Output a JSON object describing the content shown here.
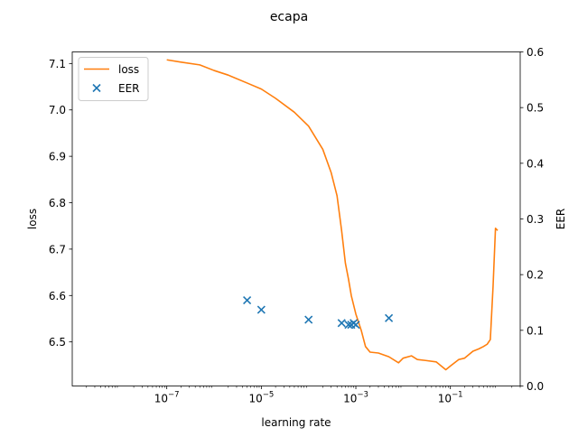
{
  "chart_data": {
    "type": "line",
    "title": "ecapa",
    "xlabel": "learning rate",
    "ylabel_left": "loss",
    "ylabel_right": "EER",
    "x_scale": "log",
    "xlim": [
      1e-09,
      3
    ],
    "ylim_left": [
      6.405,
      7.125
    ],
    "ylim_right": [
      0.0,
      0.6
    ],
    "x_ticks": [
      {
        "value": 1e-07,
        "base": "10",
        "exp": "−7"
      },
      {
        "value": 1e-05,
        "base": "10",
        "exp": "−5"
      },
      {
        "value": 0.001,
        "base": "10",
        "exp": "−3"
      },
      {
        "value": 0.1,
        "base": "10",
        "exp": "−1"
      }
    ],
    "y_ticks_left": [
      "6.5",
      "6.6",
      "6.7",
      "6.8",
      "6.9",
      "7.0",
      "7.1"
    ],
    "y_ticks_right": [
      "0.0",
      "0.1",
      "0.2",
      "0.3",
      "0.4",
      "0.5",
      "0.6"
    ],
    "legend": {
      "placement": "upper-left",
      "entries": [
        {
          "label": "loss",
          "marker": "line",
          "color": "#ff7f0e"
        },
        {
          "label": "EER",
          "marker": "x",
          "color": "#1f77b4"
        }
      ]
    },
    "series": [
      {
        "name": "loss",
        "axis": "left",
        "color": "#ff7f0e",
        "x": [
          1e-07,
          2e-07,
          5e-07,
          1e-06,
          2e-06,
          5e-06,
          1e-05,
          2e-05,
          5e-05,
          0.0001,
          0.0002,
          0.0003,
          0.0004,
          0.0005,
          0.0006,
          0.0007,
          0.0008,
          0.001,
          0.0013,
          0.0016,
          0.002,
          0.003,
          0.005,
          0.008,
          0.01,
          0.015,
          0.02,
          0.03,
          0.05,
          0.08,
          0.1,
          0.15,
          0.2,
          0.3,
          0.4,
          0.5,
          0.6,
          0.7,
          0.8,
          0.9,
          1.0
        ],
        "y": [
          7.108,
          7.103,
          7.097,
          7.085,
          7.075,
          7.058,
          7.045,
          7.025,
          6.995,
          6.965,
          6.915,
          6.865,
          6.815,
          6.74,
          6.67,
          6.635,
          6.6,
          6.56,
          6.525,
          6.49,
          6.478,
          6.476,
          6.468,
          6.455,
          6.465,
          6.47,
          6.462,
          6.46,
          6.457,
          6.44,
          6.448,
          6.462,
          6.465,
          6.48,
          6.485,
          6.49,
          6.495,
          6.505,
          6.62,
          6.745,
          6.74
        ]
      },
      {
        "name": "EER",
        "axis": "right",
        "type": "scatter",
        "marker": "x",
        "color": "#1f77b4",
        "x": [
          5e-06,
          1e-05,
          0.0001,
          0.0005,
          0.0007,
          0.0008,
          0.0009,
          0.001,
          0.005
        ],
        "y": [
          0.154,
          0.137,
          0.119,
          0.113,
          0.11,
          0.11,
          0.113,
          0.11,
          0.122
        ]
      }
    ]
  }
}
